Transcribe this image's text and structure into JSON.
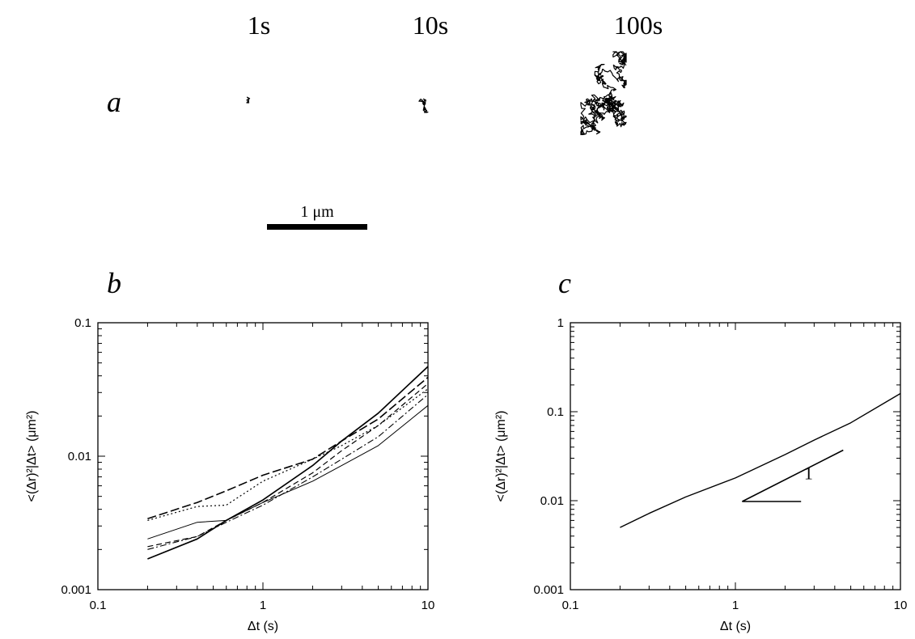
{
  "figure": {
    "panel_a": {
      "letter": "a",
      "time_labels": [
        "1s",
        "10s",
        "100s"
      ],
      "scale_bar_label": "1 μm"
    },
    "panel_b": {
      "letter": "b"
    },
    "panel_c": {
      "letter": "c",
      "slope_label": "1"
    }
  },
  "chart_data": [
    {
      "type": "line",
      "panel": "b",
      "xlabel": "Δt (s)",
      "ylabel": "<(Δr)²|Δt> (μm²)",
      "xscale": "log",
      "yscale": "log",
      "xlim": [
        0.1,
        10
      ],
      "ylim": [
        0.001,
        0.1
      ],
      "x_ticks": [
        "0.1",
        "1",
        "10"
      ],
      "y_ticks": [
        "0.001",
        "0.01",
        "0.1"
      ],
      "grid": false,
      "series": [
        {
          "style": "solid-thick",
          "x": [
            0.2,
            0.4,
            0.6,
            1,
            2,
            3,
            5,
            10
          ],
          "y": [
            0.0017,
            0.0024,
            0.0033,
            0.0047,
            0.0085,
            0.013,
            0.021,
            0.047
          ]
        },
        {
          "style": "solid-thin",
          "x": [
            0.2,
            0.4,
            0.6,
            1,
            2,
            3,
            5,
            10
          ],
          "y": [
            0.0024,
            0.0032,
            0.0033,
            0.0045,
            0.0065,
            0.0085,
            0.012,
            0.024
          ]
        },
        {
          "style": "dashed",
          "x": [
            0.2,
            0.4,
            0.6,
            1,
            2,
            3,
            5,
            10
          ],
          "y": [
            0.0021,
            0.0025,
            0.0033,
            0.0045,
            0.0075,
            0.011,
            0.017,
            0.035
          ]
        },
        {
          "style": "dash-long",
          "x": [
            0.2,
            0.4,
            0.6,
            1,
            2,
            3,
            5,
            10
          ],
          "y": [
            0.0034,
            0.0045,
            0.0055,
            0.0072,
            0.0095,
            0.013,
            0.019,
            0.039
          ]
        },
        {
          "style": "dotted",
          "x": [
            0.2,
            0.4,
            0.6,
            1,
            2,
            3,
            5,
            10
          ],
          "y": [
            0.0033,
            0.0042,
            0.0043,
            0.0065,
            0.0095,
            0.012,
            0.017,
            0.032
          ]
        },
        {
          "style": "dash-dot",
          "x": [
            0.2,
            0.4,
            0.6,
            1,
            2,
            3,
            5,
            10
          ],
          "y": [
            0.002,
            0.0025,
            0.0032,
            0.0043,
            0.007,
            0.0095,
            0.014,
            0.029
          ]
        }
      ]
    },
    {
      "type": "line",
      "panel": "c",
      "xlabel": "Δt (s)",
      "ylabel": "<(Δr)²|Δt> (μm²)",
      "xscale": "log",
      "yscale": "log",
      "xlim": [
        0.1,
        10
      ],
      "ylim": [
        0.001,
        1
      ],
      "x_ticks": [
        "0.1",
        "1",
        "10"
      ],
      "y_ticks": [
        "0.001",
        "0.01",
        "0.1",
        "1"
      ],
      "grid": false,
      "series": [
        {
          "style": "solid",
          "x": [
            0.2,
            0.3,
            0.5,
            1,
            2,
            3,
            5,
            10
          ],
          "y": [
            0.005,
            0.0072,
            0.011,
            0.018,
            0.033,
            0.048,
            0.075,
            0.16
          ]
        }
      ],
      "slope_triangle": {
        "x": [
          1.1,
          2.5,
          4.5
        ],
        "y": [
          0.0098,
          0.0098,
          0.037
        ],
        "label": "1"
      }
    }
  ]
}
